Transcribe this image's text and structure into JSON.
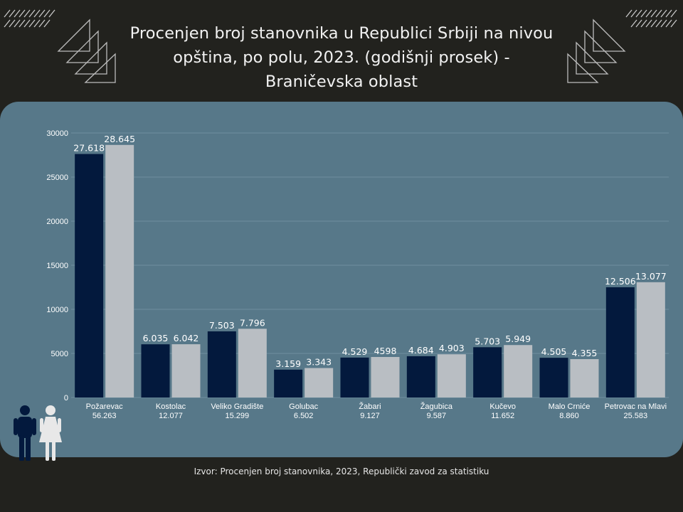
{
  "title_lines": [
    "Procenjen broj stanovnika u Republici Srbiji na nivou",
    "opština, po polu, 2023. (godišnji prosek) -",
    "Braničevska oblast"
  ],
  "source": "Izvor: Procenjen broj stanovnika, 2023, Republički zavod za statistiku",
  "icons": {
    "male": "man-icon",
    "female": "woman-icon"
  },
  "colors": {
    "background": "#22221e",
    "panel": "#577889",
    "male": "#03193d",
    "female": "#b9bec3",
    "text": "#ffffff"
  },
  "chart_data": {
    "type": "bar",
    "categories": [
      "Požarevac",
      "Kostolac",
      "Veliko Gradište",
      "Golubac",
      "Žabari",
      "Žagubica",
      "Kučevo",
      "Malo Crniće",
      "Petrovac na Mlavi"
    ],
    "totals": [
      "56.263",
      "12.077",
      "15.299",
      "6.502",
      "9.127",
      "9.587",
      "11.652",
      "8.860",
      "25.583"
    ],
    "series": [
      {
        "values": [
          27618,
          6035,
          7503,
          3159,
          4529,
          4684,
          5703,
          4505,
          12506
        ],
        "labels": [
          "27.618",
          "6.035",
          "7.503",
          "3.159",
          "4.529",
          "4.684",
          "5.703",
          "4.505",
          "12.506"
        ],
        "color": "#03193d"
      },
      {
        "values": [
          28645,
          6042,
          7796,
          3343,
          4598,
          4903,
          5949,
          4355,
          13077
        ],
        "labels": [
          "28.645",
          "6.042",
          "7.796",
          "3.343",
          "4598",
          "4.903",
          "5.949",
          "4.355",
          "13.077"
        ],
        "color": "#b9bec3"
      }
    ],
    "yticks": [
      "0",
      "5000",
      "10000",
      "15000",
      "20000",
      "25000",
      "30000"
    ],
    "ylim": [
      0,
      30000
    ],
    "grid": true,
    "legend": "none"
  }
}
